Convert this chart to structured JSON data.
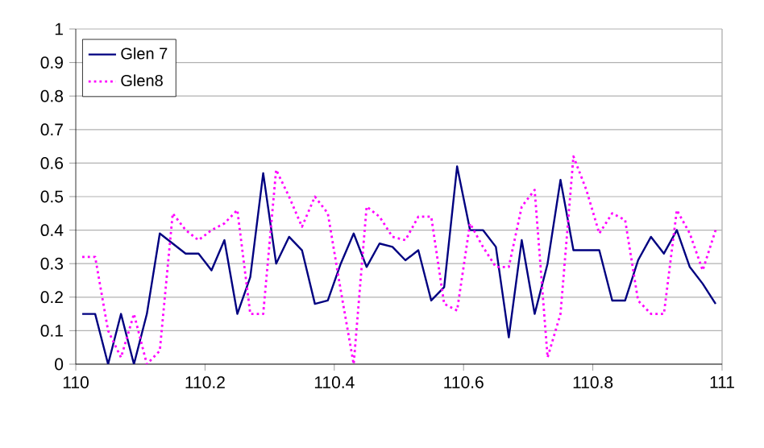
{
  "chart_data": {
    "type": "line",
    "x": [
      110.01,
      110.03,
      110.05,
      110.07,
      110.09,
      110.11,
      110.13,
      110.15,
      110.17,
      110.19,
      110.21,
      110.23,
      110.25,
      110.27,
      110.29,
      110.31,
      110.33,
      110.35,
      110.37,
      110.39,
      110.41,
      110.43,
      110.45,
      110.47,
      110.49,
      110.51,
      110.53,
      110.55,
      110.57,
      110.59,
      110.61,
      110.63,
      110.65,
      110.67,
      110.69,
      110.71,
      110.73,
      110.75,
      110.77,
      110.79,
      110.81,
      110.83,
      110.85,
      110.87,
      110.89,
      110.91,
      110.93,
      110.95,
      110.97,
      110.99
    ],
    "series": [
      {
        "name": "Glen 7",
        "color": "#000080",
        "line_style": "solid",
        "values": [
          0.15,
          0.15,
          0,
          0.15,
          0,
          0.15,
          0.39,
          0.36,
          0.33,
          0.33,
          0.28,
          0.37,
          0.15,
          0.26,
          0.57,
          0.3,
          0.38,
          0.34,
          0.18,
          0.19,
          0.3,
          0.39,
          0.29,
          0.36,
          0.35,
          0.31,
          0.34,
          0.19,
          0.23,
          0.59,
          0.4,
          0.4,
          0.35,
          0.08,
          0.37,
          0.15,
          0.3,
          0.55,
          0.34,
          0.34,
          0.34,
          0.19,
          0.19,
          0.31,
          0.38,
          0.33,
          0.4,
          0.29,
          0.24,
          0.18
        ]
      },
      {
        "name": "Glen8",
        "color": "#ff00ff",
        "line_style": "dotted",
        "values": [
          0.32,
          0.32,
          0.1,
          0.02,
          0.15,
          0,
          0.04,
          0.45,
          0.4,
          0.37,
          0.4,
          0.42,
          0.46,
          0.15,
          0.15,
          0.58,
          0.5,
          0.41,
          0.5,
          0.45,
          0.22,
          0,
          0.47,
          0.44,
          0.38,
          0.37,
          0.44,
          0.44,
          0.18,
          0.16,
          0.42,
          0.35,
          0.29,
          0.29,
          0.47,
          0.52,
          0.02,
          0.15,
          0.62,
          0.52,
          0.39,
          0.45,
          0.43,
          0.19,
          0.15,
          0.15,
          0.46,
          0.39,
          0.28,
          0.4
        ]
      }
    ],
    "xlim": [
      110,
      111
    ],
    "xticks": [
      110,
      110.2,
      110.4,
      110.6,
      110.8,
      111
    ],
    "ylim": [
      0,
      1
    ],
    "yticks": [
      0,
      0.1,
      0.2,
      0.3,
      0.4,
      0.5,
      0.6,
      0.7,
      0.8,
      0.9,
      1
    ],
    "grid": "y",
    "legend": "top left",
    "marker": "none"
  }
}
